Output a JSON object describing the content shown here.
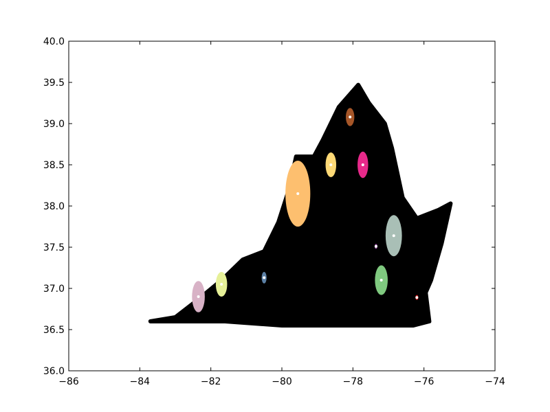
{
  "chart_data": {
    "type": "scatter",
    "title": "",
    "xlabel": "",
    "ylabel": "",
    "xlim": [
      -86,
      -74
    ],
    "ylim": [
      36.0,
      40.0
    ],
    "xticks": [
      -86,
      -84,
      -82,
      -80,
      -78,
      -76,
      -74
    ],
    "xtick_labels": [
      "−86",
      "−84",
      "−82",
      "−80",
      "−78",
      "−76",
      "−74"
    ],
    "yticks": [
      36.0,
      36.5,
      37.0,
      37.5,
      38.0,
      38.5,
      39.0,
      39.5,
      40.0
    ],
    "ytick_labels": [
      "36.0",
      "36.5",
      "37.0",
      "37.5",
      "38.0",
      "38.5",
      "39.0",
      "39.5",
      "40.0"
    ],
    "grid": false,
    "legend": "none",
    "background_points": {
      "color": "#000000",
      "outline": [
        [
          -83.7,
          36.6
        ],
        [
          -83.0,
          36.65
        ],
        [
          -82.4,
          36.85
        ],
        [
          -81.7,
          37.1
        ],
        [
          -81.1,
          37.35
        ],
        [
          -80.5,
          37.45
        ],
        [
          -80.1,
          37.8
        ],
        [
          -79.8,
          38.2
        ],
        [
          -79.6,
          38.6
        ],
        [
          -79.1,
          38.6
        ],
        [
          -78.85,
          38.8
        ],
        [
          -78.4,
          39.2
        ],
        [
          -77.85,
          39.47
        ],
        [
          -77.55,
          39.25
        ],
        [
          -77.1,
          39.0
        ],
        [
          -76.9,
          38.7
        ],
        [
          -76.6,
          38.1
        ],
        [
          -76.2,
          37.85
        ],
        [
          -75.6,
          37.95
        ],
        [
          -75.25,
          38.03
        ],
        [
          -75.5,
          37.55
        ],
        [
          -75.8,
          37.1
        ],
        [
          -75.95,
          36.95
        ],
        [
          -75.85,
          36.6
        ],
        [
          -76.3,
          36.55
        ],
        [
          -78.0,
          36.55
        ],
        [
          -80.0,
          36.55
        ],
        [
          -81.6,
          36.6
        ],
        [
          -83.7,
          36.6
        ]
      ]
    },
    "clusters": [
      {
        "color": "#a65628",
        "center": [
          -78.08,
          39.08
        ],
        "spread": [
          0.12,
          0.11
        ]
      },
      {
        "color": "#e7298a",
        "center": [
          -77.72,
          38.5
        ],
        "spread": [
          0.15,
          0.16
        ]
      },
      {
        "color": "#fed976",
        "center": [
          -78.62,
          38.5
        ],
        "spread": [
          0.15,
          0.15
        ]
      },
      {
        "color": "#fdbf6f",
        "center": [
          -79.55,
          38.15
        ],
        "spread": [
          0.35,
          0.4
        ]
      },
      {
        "color": "#a9bfb6",
        "center": [
          -76.85,
          37.64
        ],
        "spread": [
          0.23,
          0.25
        ]
      },
      {
        "color": "#984ea3",
        "center": [
          -77.35,
          37.51
        ],
        "spread": [
          0.04,
          0.03
        ]
      },
      {
        "color": "#7fc97f",
        "center": [
          -77.2,
          37.1
        ],
        "spread": [
          0.18,
          0.18
        ]
      },
      {
        "color": "#e41a1c",
        "center": [
          -76.2,
          36.89
        ],
        "spread": [
          0.04,
          0.03
        ]
      },
      {
        "color": "#5b7fa4",
        "center": [
          -80.5,
          37.13
        ],
        "spread": [
          0.07,
          0.07
        ]
      },
      {
        "color": "#e6f098",
        "center": [
          -81.7,
          37.05
        ],
        "spread": [
          0.16,
          0.15
        ]
      },
      {
        "color": "#d8b2c6",
        "center": [
          -82.35,
          36.9
        ],
        "spread": [
          0.18,
          0.19
        ]
      }
    ]
  }
}
